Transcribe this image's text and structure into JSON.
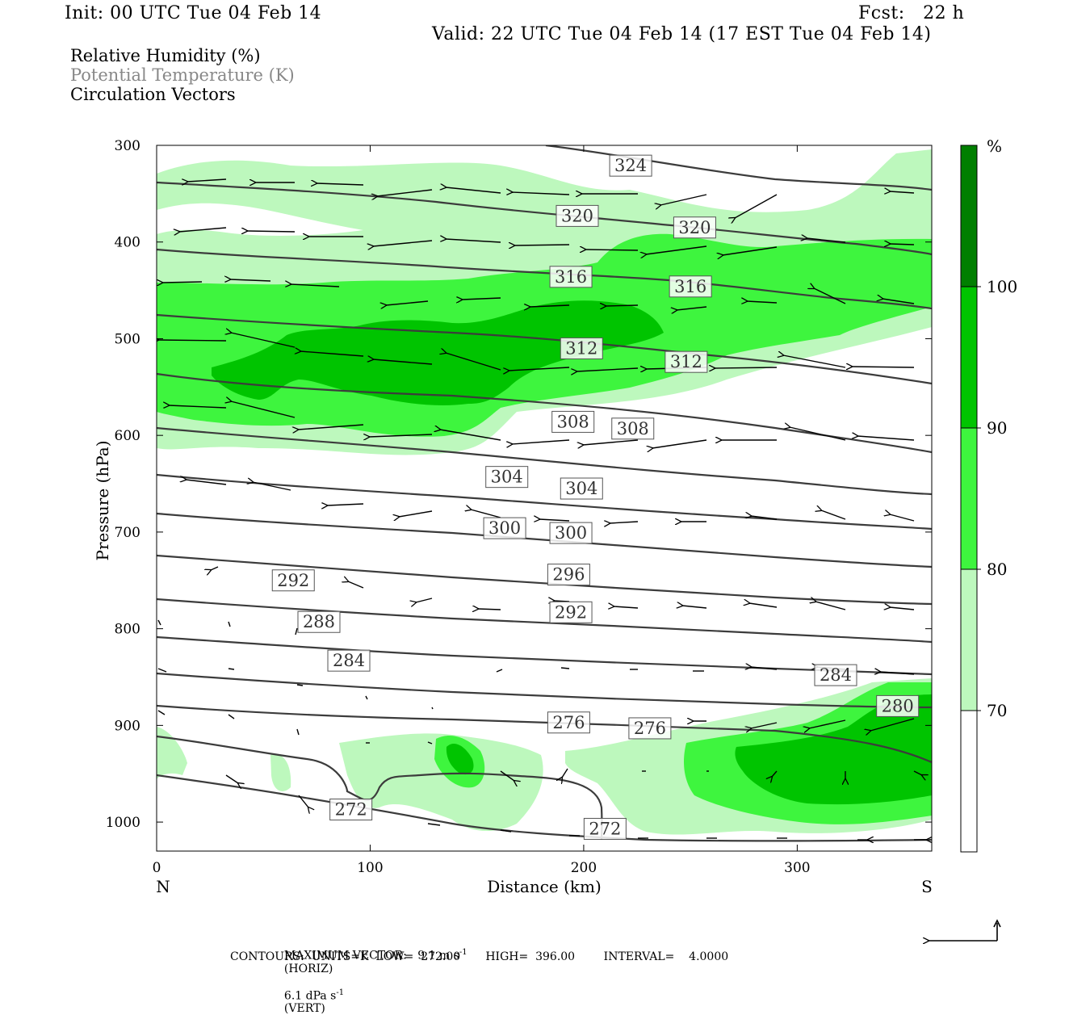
{
  "header": {
    "init": "Init: 00 UTC Tue 04 Feb 14",
    "fcst": "Fcst:   22 h",
    "valid": "Valid: 22 UTC Tue 04 Feb 14 (17 EST Tue 04 Feb 14)"
  },
  "legend": {
    "rh": "Relative Humidity (%)",
    "theta": "Potential Temperature (K)",
    "vectors": "Circulation Vectors"
  },
  "footer": {
    "max_vector": "MAXIMUM VECTOR:   9.1 m s",
    "horiz_unit": "-1",
    "horiz_tag": "(HORIZ)",
    "vert_val": "6.1 dPa s",
    "vert_unit": "-1",
    "vert_tag": "(VERT)",
    "contours": "CONTOURS:  UNITS=K  LOW=  272.00       HIGH=  396.00        INTERVAL=    4.0000"
  },
  "colors": {
    "rh_70_80": "#bdf8bd",
    "rh_80_90": "#3ef53e",
    "rh_90_100": "#00c400",
    "rh_100_plus": "#007f00",
    "contour": "#3c3c3c",
    "vector": "#000000"
  },
  "chart_data": {
    "type": "cross-section",
    "xlabel": "Distance (km)",
    "ylabel": "Pressure (hPa)",
    "x_ticks": [
      "0",
      "100",
      "200",
      "300"
    ],
    "x_end_labels": {
      "left": "N",
      "right": "S"
    },
    "y_ticks": [
      "300",
      "400",
      "500",
      "600",
      "700",
      "800",
      "900",
      "1000"
    ],
    "xlim": [
      0,
      363
    ],
    "ylim": [
      300,
      1030
    ],
    "colorbar": {
      "unit": "%",
      "tick_labels": [
        "70",
        "80",
        "90",
        "100"
      ],
      "levels": [
        70,
        80,
        90,
        100
      ]
    },
    "theta_contours_K": [
      272,
      276,
      280,
      284,
      288,
      292,
      296,
      300,
      304,
      308,
      312,
      316,
      320,
      324
    ],
    "theta_labels": [
      {
        "text": "324",
        "x": 222,
        "p": 321
      },
      {
        "text": "320",
        "x": 197,
        "p": 373
      },
      {
        "text": "320",
        "x": 252,
        "p": 385
      },
      {
        "text": "316",
        "x": 194,
        "p": 436
      },
      {
        "text": "316",
        "x": 250,
        "p": 446
      },
      {
        "text": "312",
        "x": 199,
        "p": 510
      },
      {
        "text": "312",
        "x": 248,
        "p": 524
      },
      {
        "text": "308",
        "x": 195,
        "p": 586
      },
      {
        "text": "308",
        "x": 223,
        "p": 593
      },
      {
        "text": "304",
        "x": 164,
        "p": 643
      },
      {
        "text": "304",
        "x": 199,
        "p": 655
      },
      {
        "text": "300",
        "x": 163,
        "p": 696
      },
      {
        "text": "300",
        "x": 194,
        "p": 701
      },
      {
        "text": "296",
        "x": 193,
        "p": 744
      },
      {
        "text": "292",
        "x": 64,
        "p": 750
      },
      {
        "text": "292",
        "x": 194,
        "p": 783
      },
      {
        "text": "288",
        "x": 76,
        "p": 793
      },
      {
        "text": "284",
        "x": 90,
        "p": 833
      },
      {
        "text": "284",
        "x": 318,
        "p": 848
      },
      {
        "text": "276",
        "x": 193,
        "p": 897
      },
      {
        "text": "276",
        "x": 231,
        "p": 903
      },
      {
        "text": "280",
        "x": 347,
        "p": 880
      },
      {
        "text": "272",
        "x": 91,
        "p": 987
      },
      {
        "text": "272",
        "x": 210,
        "p": 1007
      }
    ]
  }
}
